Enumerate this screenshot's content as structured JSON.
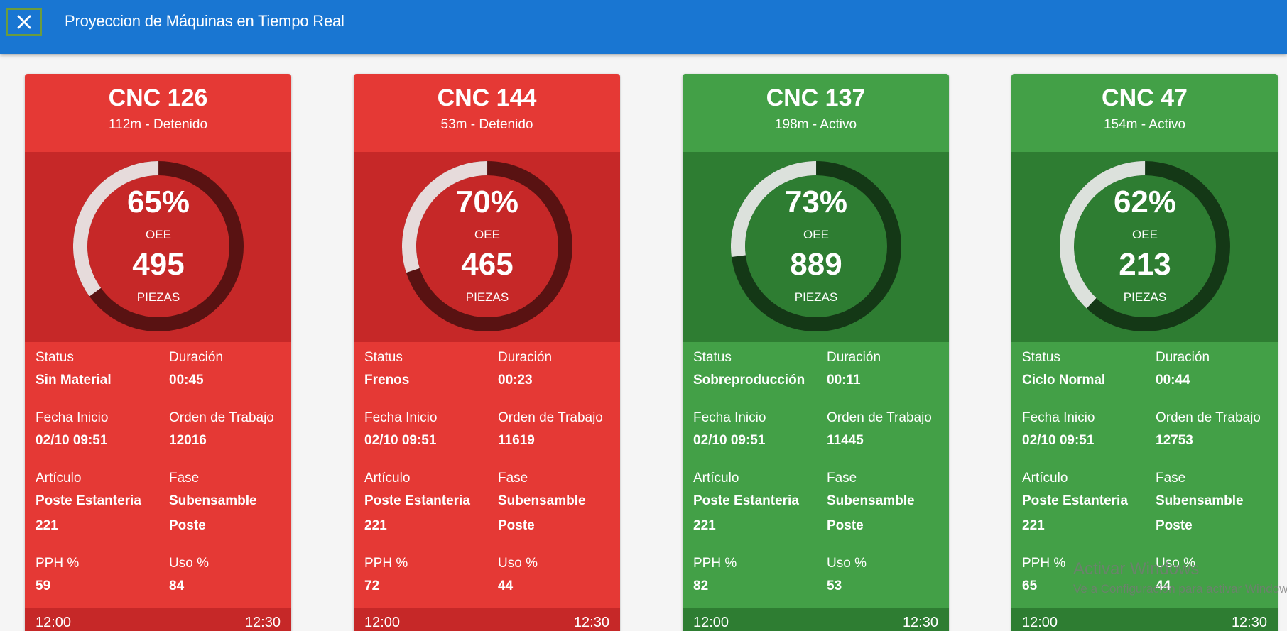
{
  "header": {
    "title": "Proyeccion de Máquinas en Tiempo Real",
    "close_icon": "close-icon"
  },
  "field_labels": {
    "status": "Status",
    "duration": "Duración",
    "start_date": "Fecha Inicio",
    "work_order": "Orden de Trabajo",
    "article": "Artículo",
    "phase": "Fase",
    "pph": "PPH %",
    "usage": "Uso %",
    "oee": "OEE",
    "pieces": "PIEZAS"
  },
  "colors": {
    "topbar": "#1976d2",
    "red_card": "#e53935",
    "red_dark": "#c62828",
    "green_card": "#43a047",
    "green_dark": "#2e7d32"
  },
  "machines": [
    {
      "name": "CNC 126",
      "subtitle": "112m - Detenido",
      "state": "red",
      "oee_value": 0.65,
      "oee": "65%",
      "pieces": "495",
      "status": "Sin Material",
      "duration": "00:45",
      "start_date": "02/10 09:51",
      "work_order": "12016",
      "article_line1": "Poste Estanteria",
      "article_line2": "221",
      "phase_line1": "Subensamble",
      "phase_line2": "Poste",
      "pph": "59",
      "usage": "84",
      "time_start": "12:00",
      "time_end": "12:30"
    },
    {
      "name": "CNC 144",
      "subtitle": "53m - Detenido",
      "state": "red",
      "oee_value": 0.7,
      "oee": "70%",
      "pieces": "465",
      "status": "Frenos",
      "duration": "00:23",
      "start_date": "02/10 09:51",
      "work_order": "11619",
      "article_line1": "Poste Estanteria",
      "article_line2": "221",
      "phase_line1": "Subensamble",
      "phase_line2": "Poste",
      "pph": "72",
      "usage": "44",
      "time_start": "12:00",
      "time_end": "12:30"
    },
    {
      "name": "CNC 137",
      "subtitle": "198m - Activo",
      "state": "green",
      "oee_value": 0.73,
      "oee": "73%",
      "pieces": "889",
      "status": "Sobreproducción",
      "duration": "00:11",
      "start_date": "02/10 09:51",
      "work_order": "11445",
      "article_line1": "Poste Estanteria",
      "article_line2": "221",
      "phase_line1": "Subensamble",
      "phase_line2": "Poste",
      "pph": "82",
      "usage": "53",
      "time_start": "12:00",
      "time_end": "12:30"
    },
    {
      "name": "CNC 47",
      "subtitle": "154m - Activo",
      "state": "green",
      "oee_value": 0.62,
      "oee": "62%",
      "pieces": "213",
      "status": "Ciclo Normal",
      "duration": "00:44",
      "start_date": "02/10 09:51",
      "work_order": "12753",
      "article_line1": "Poste Estanteria",
      "article_line2": "221",
      "phase_line1": "Subensamble",
      "phase_line2": "Poste",
      "pph": "65",
      "usage": "44",
      "time_start": "12:00",
      "time_end": "12:30"
    }
  ],
  "watermark": {
    "title": "Activar Windows",
    "subtitle": "Ve a Configuración para activar Windows."
  }
}
